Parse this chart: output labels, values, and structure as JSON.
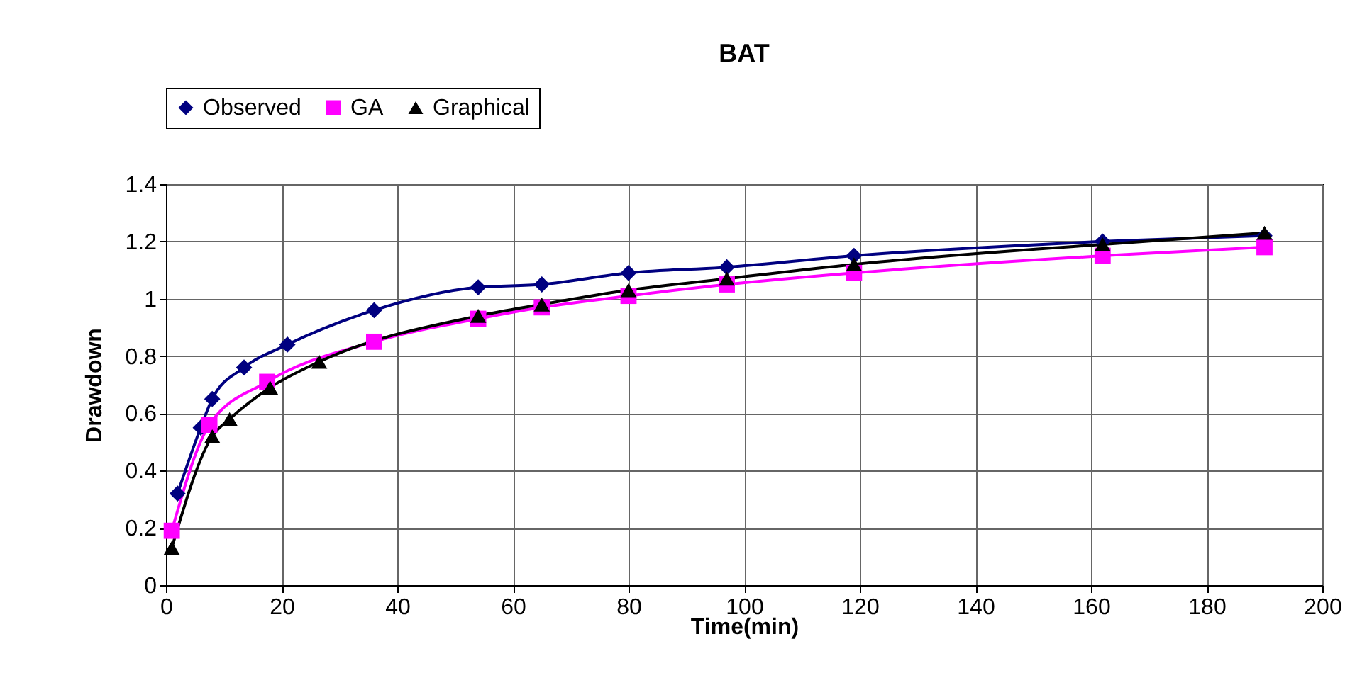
{
  "chart_data": {
    "type": "line",
    "title": "BAT",
    "xlabel": "Time(min)",
    "ylabel": "Drawdown",
    "xlim": [
      0,
      200
    ],
    "xticks": [
      0,
      20,
      40,
      60,
      80,
      100,
      120,
      140,
      160,
      180,
      200
    ],
    "ylim": [
      0,
      1.4
    ],
    "yticks": [
      0,
      0.2,
      0.4,
      0.6,
      0.8,
      1,
      1.2,
      1.4
    ],
    "line_style": "solid",
    "grid": true,
    "legend": "top",
    "series": [
      {
        "name": "Observed",
        "color": "#000080",
        "marker": "diamond",
        "x": [
          2,
          6,
          8,
          13.5,
          21,
          36,
          54,
          65,
          80,
          97,
          119,
          162,
          190
        ],
        "values": [
          0.32,
          0.55,
          0.65,
          0.76,
          0.84,
          0.96,
          1.04,
          1.05,
          1.09,
          1.11,
          1.15,
          1.2,
          1.22
        ]
      },
      {
        "name": "GA",
        "color": "#ff00ff",
        "marker": "square",
        "x": [
          1,
          7.5,
          17.5,
          36,
          54,
          65,
          80,
          97,
          119,
          162,
          190
        ],
        "values": [
          0.19,
          0.56,
          0.71,
          0.85,
          0.93,
          0.97,
          1.01,
          1.05,
          1.09,
          1.15,
          1.18
        ]
      },
      {
        "name": "Graphical",
        "color": "#000000",
        "marker": "triangle",
        "x": [
          1,
          8,
          11,
          18,
          26.5,
          54,
          65,
          80,
          97,
          119,
          162,
          190
        ],
        "values": [
          0.13,
          0.52,
          0.58,
          0.69,
          0.78,
          0.94,
          0.98,
          1.03,
          1.07,
          1.12,
          1.19,
          1.23
        ]
      }
    ]
  }
}
